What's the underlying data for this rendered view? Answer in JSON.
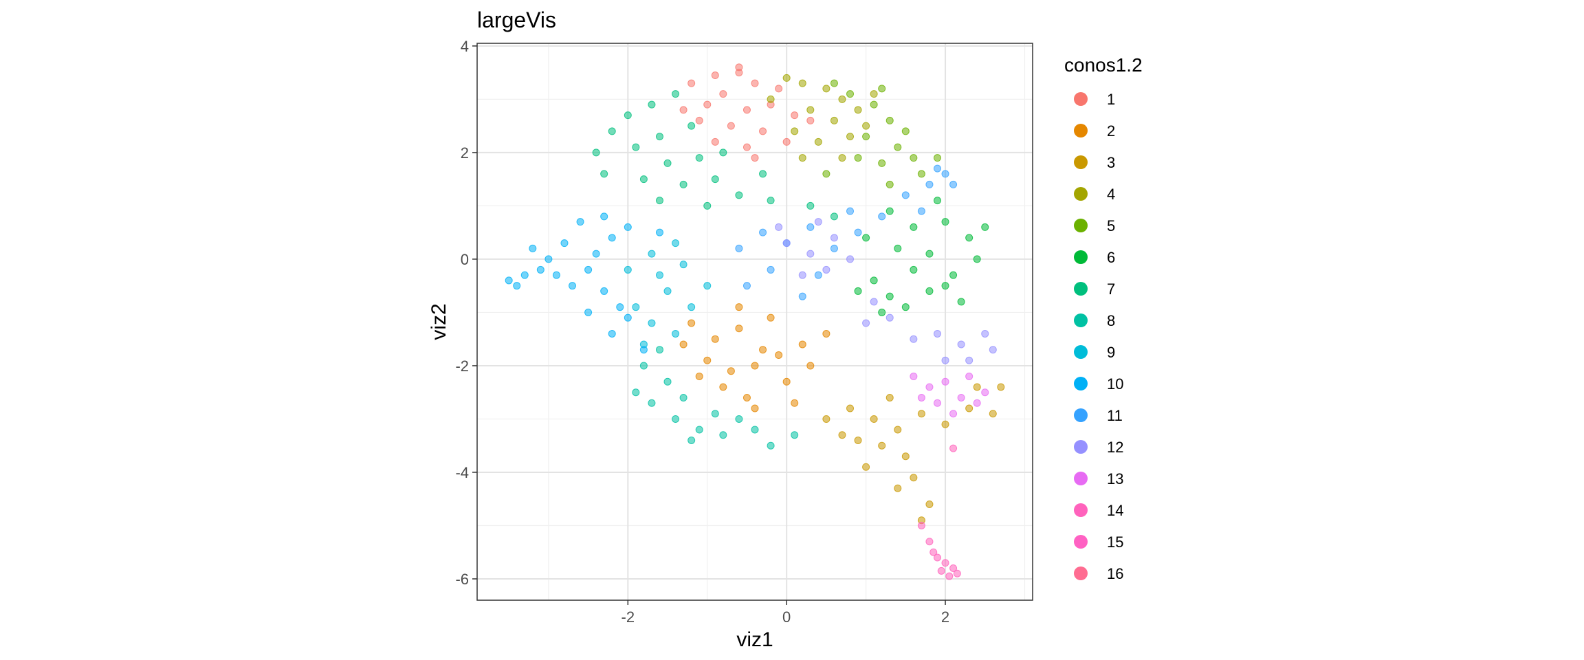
{
  "chart_data": {
    "type": "scatter",
    "title": "largeVis",
    "xlabel": "viz1",
    "ylabel": "viz2",
    "xlim": [
      -3.9,
      3.1
    ],
    "ylim": [
      -6.4,
      4.05
    ],
    "xticks": [
      -2,
      0,
      2
    ],
    "yticks": [
      4,
      2,
      0,
      -2,
      -4,
      -6
    ],
    "xtick_labels": [
      "-2",
      "0",
      "2"
    ],
    "ytick_labels": [
      "4",
      "2",
      "0",
      "-2",
      "-4",
      "-6"
    ],
    "grid": true,
    "legend_title": "conos1.2",
    "legend_position": "right",
    "series": [
      {
        "name": "1",
        "color": "#F8766D",
        "points": [
          [
            -1.2,
            3.3
          ],
          [
            -0.9,
            3.45
          ],
          [
            -0.6,
            3.5
          ],
          [
            -0.4,
            3.3
          ],
          [
            -0.8,
            3.1
          ],
          [
            -1.0,
            2.9
          ],
          [
            -0.5,
            2.8
          ],
          [
            -0.2,
            2.9
          ],
          [
            0.1,
            2.7
          ],
          [
            -0.7,
            2.5
          ],
          [
            -1.1,
            2.6
          ],
          [
            -0.3,
            2.4
          ],
          [
            0.0,
            2.2
          ],
          [
            -0.5,
            2.1
          ],
          [
            -0.9,
            2.2
          ],
          [
            -1.3,
            2.8
          ],
          [
            -0.6,
            3.6
          ],
          [
            -0.1,
            3.2
          ],
          [
            0.3,
            2.6
          ],
          [
            -0.4,
            1.9
          ]
        ]
      },
      {
        "name": "2",
        "color": "#E58700",
        "points": [
          [
            -1.2,
            -1.2
          ],
          [
            -0.9,
            -1.5
          ],
          [
            -0.6,
            -1.3
          ],
          [
            -0.3,
            -1.7
          ],
          [
            -1.0,
            -1.9
          ],
          [
            -0.7,
            -2.1
          ],
          [
            -0.4,
            -2.0
          ],
          [
            -0.1,
            -1.8
          ],
          [
            0.2,
            -1.6
          ],
          [
            -1.3,
            -1.6
          ],
          [
            -0.8,
            -2.4
          ],
          [
            -0.5,
            -2.6
          ],
          [
            0.0,
            -2.3
          ],
          [
            0.3,
            -2.0
          ],
          [
            -0.2,
            -1.1
          ],
          [
            -0.6,
            -0.9
          ],
          [
            0.5,
            -1.4
          ],
          [
            -1.1,
            -2.2
          ],
          [
            0.1,
            -2.7
          ],
          [
            -0.4,
            -2.8
          ]
        ]
      },
      {
        "name": "3",
        "color": "#C99800",
        "points": [
          [
            0.8,
            -2.8
          ],
          [
            1.1,
            -3.0
          ],
          [
            1.4,
            -3.2
          ],
          [
            1.7,
            -2.9
          ],
          [
            2.0,
            -3.1
          ],
          [
            2.3,
            -2.8
          ],
          [
            2.6,
            -2.9
          ],
          [
            1.2,
            -3.5
          ],
          [
            1.5,
            -3.7
          ],
          [
            0.9,
            -3.4
          ],
          [
            1.6,
            -4.1
          ],
          [
            1.8,
            -4.6
          ],
          [
            1.7,
            -4.9
          ],
          [
            1.4,
            -4.3
          ],
          [
            0.5,
            -3.0
          ],
          [
            0.7,
            -3.3
          ],
          [
            2.4,
            -2.4
          ],
          [
            2.7,
            -2.4
          ],
          [
            1.0,
            -3.9
          ],
          [
            1.3,
            -2.6
          ]
        ]
      },
      {
        "name": "4",
        "color": "#A3A500",
        "points": [
          [
            0.2,
            3.3
          ],
          [
            0.5,
            3.2
          ],
          [
            0.7,
            3.0
          ],
          [
            0.3,
            2.8
          ],
          [
            0.6,
            2.6
          ],
          [
            0.9,
            2.8
          ],
          [
            0.1,
            2.4
          ],
          [
            0.4,
            2.2
          ],
          [
            0.8,
            2.3
          ],
          [
            -0.2,
            3.0
          ],
          [
            1.0,
            2.5
          ],
          [
            0.2,
            1.9
          ],
          [
            0.7,
            1.9
          ],
          [
            1.1,
            3.1
          ],
          [
            0.0,
            3.4
          ]
        ]
      },
      {
        "name": "5",
        "color": "#6BB100",
        "points": [
          [
            0.8,
            3.1
          ],
          [
            1.1,
            2.9
          ],
          [
            1.3,
            2.6
          ],
          [
            1.0,
            2.3
          ],
          [
            1.4,
            2.1
          ],
          [
            1.6,
            1.9
          ],
          [
            1.2,
            1.8
          ],
          [
            0.9,
            1.9
          ],
          [
            1.5,
            2.4
          ],
          [
            0.6,
            3.3
          ],
          [
            1.2,
            3.2
          ],
          [
            1.9,
            1.9
          ],
          [
            1.7,
            1.6
          ],
          [
            1.3,
            1.4
          ],
          [
            0.5,
            1.6
          ]
        ]
      },
      {
        "name": "6",
        "color": "#00BA38",
        "points": [
          [
            1.3,
            0.9
          ],
          [
            1.6,
            0.6
          ],
          [
            2.0,
            0.7
          ],
          [
            2.3,
            0.4
          ],
          [
            2.4,
            0.0
          ],
          [
            2.1,
            -0.3
          ],
          [
            1.8,
            -0.6
          ],
          [
            1.5,
            -0.9
          ],
          [
            1.1,
            -0.4
          ],
          [
            1.4,
            0.2
          ],
          [
            1.8,
            0.1
          ],
          [
            2.2,
            -0.8
          ],
          [
            1.2,
            -1.0
          ],
          [
            0.9,
            -0.6
          ],
          [
            1.9,
            1.1
          ],
          [
            2.5,
            0.6
          ],
          [
            1.6,
            -0.2
          ],
          [
            1.0,
            0.4
          ],
          [
            2.0,
            -0.5
          ],
          [
            1.3,
            -0.7
          ]
        ]
      },
      {
        "name": "7",
        "color": "#00BF7D",
        "points": [
          [
            -2.4,
            2.0
          ],
          [
            -2.2,
            2.4
          ],
          [
            -2.0,
            2.7
          ],
          [
            -1.7,
            2.9
          ],
          [
            -1.4,
            3.1
          ],
          [
            -1.9,
            2.1
          ],
          [
            -1.6,
            2.3
          ],
          [
            -1.2,
            2.5
          ],
          [
            -1.5,
            1.8
          ],
          [
            -1.1,
            1.9
          ],
          [
            -1.8,
            1.5
          ],
          [
            -1.3,
            1.4
          ],
          [
            -0.9,
            1.5
          ],
          [
            -0.6,
            1.2
          ],
          [
            -0.2,
            1.1
          ],
          [
            0.3,
            1.0
          ],
          [
            -2.3,
            1.6
          ],
          [
            -1.0,
            1.0
          ],
          [
            0.6,
            0.8
          ],
          [
            -1.6,
            1.1
          ],
          [
            -0.8,
            2.0
          ],
          [
            -0.3,
            1.6
          ]
        ]
      },
      {
        "name": "8",
        "color": "#00C1A3",
        "points": [
          [
            -1.8,
            -2.0
          ],
          [
            -1.5,
            -2.3
          ],
          [
            -1.7,
            -2.7
          ],
          [
            -1.4,
            -3.0
          ],
          [
            -1.1,
            -3.2
          ],
          [
            -0.8,
            -3.3
          ],
          [
            -0.4,
            -3.2
          ],
          [
            -0.2,
            -3.5
          ],
          [
            -1.9,
            -2.5
          ],
          [
            -1.3,
            -2.6
          ],
          [
            -0.9,
            -2.9
          ],
          [
            -1.6,
            -1.7
          ],
          [
            -0.6,
            -3.0
          ],
          [
            -1.2,
            -3.4
          ],
          [
            0.1,
            -3.3
          ]
        ]
      },
      {
        "name": "9",
        "color": "#00BCD8",
        "points": [
          [
            -1.9,
            -0.9
          ],
          [
            -1.7,
            -1.2
          ],
          [
            -1.5,
            -0.6
          ],
          [
            -1.8,
            -1.6
          ],
          [
            -1.4,
            -1.4
          ],
          [
            -1.6,
            -0.3
          ],
          [
            -1.3,
            -0.1
          ],
          [
            -1.0,
            -0.5
          ],
          [
            -2.0,
            -0.2
          ],
          [
            -1.2,
            -0.9
          ],
          [
            -1.4,
            0.3
          ],
          [
            -1.7,
            0.1
          ]
        ]
      },
      {
        "name": "10",
        "color": "#00B0F6",
        "points": [
          [
            -3.5,
            -0.4
          ],
          [
            -3.3,
            -0.3
          ],
          [
            -3.1,
            -0.2
          ],
          [
            -3.4,
            -0.5
          ],
          [
            -2.9,
            -0.3
          ],
          [
            -2.7,
            -0.5
          ],
          [
            -2.5,
            -0.2
          ],
          [
            -2.3,
            -0.6
          ],
          [
            -2.1,
            -0.9
          ],
          [
            -2.4,
            0.1
          ],
          [
            -2.2,
            0.4
          ],
          [
            -2.0,
            0.6
          ],
          [
            -2.6,
            0.7
          ],
          [
            -2.8,
            0.3
          ],
          [
            -3.0,
            0.0
          ],
          [
            -3.2,
            0.2
          ],
          [
            -2.2,
            -1.4
          ],
          [
            -2.0,
            -1.1
          ],
          [
            -1.8,
            -1.7
          ],
          [
            -2.5,
            -1.0
          ],
          [
            -1.6,
            0.5
          ],
          [
            -2.3,
            0.8
          ]
        ]
      },
      {
        "name": "11",
        "color": "#35A2FF",
        "points": [
          [
            -0.6,
            0.2
          ],
          [
            -0.3,
            0.5
          ],
          [
            0.0,
            0.3
          ],
          [
            0.3,
            0.6
          ],
          [
            0.6,
            0.2
          ],
          [
            0.9,
            0.5
          ],
          [
            1.2,
            0.8
          ],
          [
            1.5,
            1.2
          ],
          [
            1.8,
            1.4
          ],
          [
            2.0,
            1.6
          ],
          [
            1.7,
            0.9
          ],
          [
            -0.2,
            -0.2
          ],
          [
            0.4,
            -0.3
          ],
          [
            0.2,
            -0.7
          ],
          [
            -0.5,
            -0.5
          ],
          [
            1.9,
            1.7
          ],
          [
            2.1,
            1.4
          ],
          [
            0.8,
            0.9
          ]
        ]
      },
      {
        "name": "12",
        "color": "#9590FF",
        "points": [
          [
            0.0,
            0.3
          ],
          [
            0.3,
            0.1
          ],
          [
            0.5,
            -0.2
          ],
          [
            0.2,
            -0.3
          ],
          [
            0.6,
            0.4
          ],
          [
            0.8,
            0.0
          ],
          [
            1.0,
            -1.2
          ],
          [
            1.3,
            -1.1
          ],
          [
            1.6,
            -1.5
          ],
          [
            1.9,
            -1.4
          ],
          [
            2.2,
            -1.6
          ],
          [
            2.5,
            -1.4
          ],
          [
            2.6,
            -1.7
          ],
          [
            2.3,
            -1.9
          ],
          [
            1.1,
            -0.8
          ],
          [
            -0.1,
            0.6
          ],
          [
            0.4,
            0.7
          ],
          [
            2.0,
            -1.9
          ]
        ]
      },
      {
        "name": "13",
        "color": "#E76BF3",
        "points": [
          [
            1.6,
            -2.2
          ],
          [
            1.8,
            -2.4
          ],
          [
            2.0,
            -2.3
          ],
          [
            2.2,
            -2.6
          ],
          [
            2.4,
            -2.7
          ],
          [
            1.9,
            -2.7
          ],
          [
            2.1,
            -2.9
          ],
          [
            1.7,
            -2.6
          ],
          [
            2.3,
            -2.2
          ],
          [
            2.5,
            -2.5
          ]
        ]
      },
      {
        "name": "14",
        "color": "#FF62BC",
        "points": [
          [
            1.9,
            -5.6
          ],
          [
            2.0,
            -5.7
          ],
          [
            2.1,
            -5.8
          ],
          [
            2.05,
            -5.95
          ],
          [
            1.95,
            -5.85
          ],
          [
            1.85,
            -5.5
          ],
          [
            2.1,
            -3.55
          ],
          [
            1.7,
            -5.0
          ],
          [
            1.8,
            -5.3
          ],
          [
            2.15,
            -5.9
          ]
        ]
      },
      {
        "name": "15",
        "color": "#FF61C3",
        "points": []
      },
      {
        "name": "16",
        "color": "#FF6C91",
        "points": []
      }
    ]
  }
}
